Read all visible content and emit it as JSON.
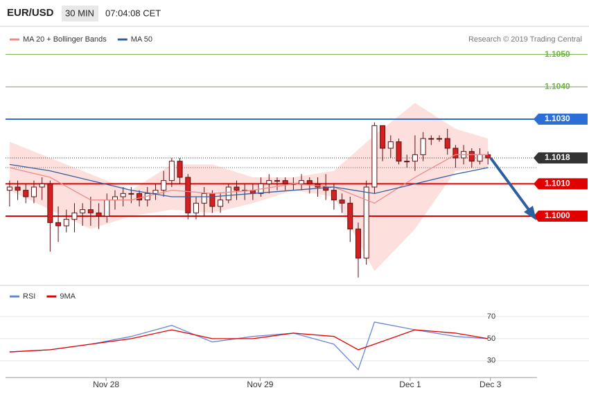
{
  "header": {
    "symbol": "EUR/USD",
    "timeframe": "30 MIN",
    "time": "07:04:08 CET",
    "copyright": "Research © 2019 Trading Central"
  },
  "chart_data": [
    {
      "type": "candlestick",
      "xlim": [
        -0.5,
        65.05
      ],
      "ylim": [
        1.0979,
        1.1054
      ],
      "up_color": "#ffffff",
      "down_color": "#d42020",
      "edge_color": "#5a1010",
      "open": [
        1.1008,
        1.1009,
        1.1008,
        1.1006,
        1.1009,
        1.101,
        1.0998,
        1.0997,
        1.0999,
        1.1001,
        1.1002,
        1.1001,
        1.1,
        1.1005,
        1.1006,
        1.1007,
        1.1007,
        1.1005,
        1.1007,
        1.1008,
        1.1011,
        1.1017,
        1.1012,
        1.1001,
        1.1004,
        1.1007,
        1.1003,
        1.1005,
        1.1009,
        1.1008,
        1.1008,
        1.1007,
        1.101,
        1.1011,
        1.1011,
        1.101,
        1.101,
        1.1011,
        1.101,
        1.1009,
        1.1008,
        1.1005,
        1.1004,
        1.0996,
        1.0987,
        1.1009,
        1.1028,
        1.1021,
        1.1023,
        1.1017,
        1.1017,
        1.1019,
        1.1024,
        1.1024,
        1.1024,
        1.1021,
        1.1018,
        1.102,
        1.1017,
        1.1019
      ],
      "high": [
        1.1011,
        1.1011,
        1.101,
        1.1011,
        1.1012,
        1.1011,
        1.1003,
        1.1002,
        1.1004,
        1.1004,
        1.1006,
        1.1004,
        1.1007,
        1.1008,
        1.1009,
        1.1009,
        1.1008,
        1.1009,
        1.101,
        1.1014,
        1.1018,
        1.1018,
        1.1013,
        1.1006,
        1.1009,
        1.1008,
        1.1007,
        1.101,
        1.1011,
        1.101,
        1.101,
        1.1012,
        1.1013,
        1.1012,
        1.1012,
        1.1012,
        1.1013,
        1.1012,
        1.1012,
        1.1013,
        1.101,
        1.1007,
        1.1006,
        1.0998,
        1.1011,
        1.1029,
        1.1028,
        1.1025,
        1.1024,
        1.1019,
        1.1025,
        1.1026,
        1.1025,
        1.1025,
        1.1027,
        1.1022,
        1.1022,
        1.1021,
        1.1021,
        1.102
      ],
      "low": [
        1.1003,
        1.1005,
        1.1004,
        1.1004,
        1.1005,
        1.0989,
        1.0992,
        1.0995,
        1.0995,
        1.0997,
        1.0997,
        1.0996,
        1.0998,
        1.1002,
        1.1003,
        1.1004,
        1.1003,
        1.1003,
        1.1005,
        1.1006,
        1.1009,
        1.101,
        1.0999,
        1.0999,
        1.1,
        1.1001,
        1.1001,
        1.1004,
        1.1005,
        1.1005,
        1.1005,
        1.1006,
        1.1007,
        1.1008,
        1.1008,
        1.1008,
        1.1008,
        1.1007,
        1.1006,
        1.1005,
        1.1002,
        1.1001,
        1.0992,
        1.0981,
        1.0985,
        1.1007,
        1.1017,
        1.1018,
        1.1016,
        1.1015,
        1.1014,
        1.1017,
        1.1022,
        1.1023,
        1.1019,
        1.1015,
        1.1016,
        1.1015,
        1.1016,
        1.1016
      ],
      "close": [
        1.1009,
        1.1008,
        1.1006,
        1.1009,
        1.101,
        1.0998,
        1.0997,
        1.0999,
        1.1001,
        1.1002,
        1.1001,
        1.1,
        1.1005,
        1.1006,
        1.1007,
        1.1007,
        1.1005,
        1.1007,
        1.1008,
        1.1011,
        1.1017,
        1.1012,
        1.1001,
        1.1004,
        1.1007,
        1.1003,
        1.1005,
        1.1009,
        1.1008,
        1.1008,
        1.1007,
        1.101,
        1.1011,
        1.1011,
        1.101,
        1.101,
        1.1011,
        1.101,
        1.1009,
        1.1008,
        1.1005,
        1.1004,
        1.0996,
        1.0987,
        1.1009,
        1.1028,
        1.1021,
        1.1023,
        1.1017,
        1.1017,
        1.1019,
        1.1024,
        1.1024,
        1.1024,
        1.1021,
        1.1018,
        1.102,
        1.1017,
        1.1019,
        1.1018
      ],
      "series": [
        {
          "name": "MA 20 + Bollinger Bands",
          "color": "#f08a8a",
          "band_color": "#fde0de",
          "x": [
            0,
            5,
            10,
            15,
            20,
            25,
            30,
            35,
            40,
            45,
            50,
            55,
            59
          ],
          "values": [
            1.1015,
            1.1012,
            1.1005,
            1.1005,
            1.1008,
            1.1007,
            1.1008,
            1.101,
            1.1009,
            1.1004,
            1.1012,
            1.1019,
            1.1019
          ],
          "upper": [
            1.1023,
            1.1018,
            1.1013,
            1.1008,
            1.1016,
            1.1016,
            1.1012,
            1.1012,
            1.1014,
            1.1025,
            1.1035,
            1.1027,
            1.1024
          ],
          "lower": [
            1.1008,
            1.1002,
            1.0996,
            1.1,
            1.1002,
            1.1001,
            1.1004,
            1.1008,
            1.1006,
            1.0983,
            1.0996,
            1.1014,
            1.1015
          ]
        },
        {
          "name": "MA 50",
          "color": "#2f5f9f",
          "x": [
            0,
            5,
            10,
            15,
            20,
            25,
            30,
            35,
            40,
            45,
            50,
            55,
            59
          ],
          "values": [
            1.1016,
            1.1014,
            1.1011,
            1.1008,
            1.1006,
            1.1006,
            1.1007,
            1.1008,
            1.1009,
            1.1007,
            1.101,
            1.1013,
            1.1015
          ]
        }
      ],
      "levels": [
        {
          "value": 1.105,
          "label": "1.1050",
          "color": "#6db33f",
          "style": "text"
        },
        {
          "value": 1.104,
          "label": "1.1040",
          "color": "#6db33f",
          "style": "text"
        },
        {
          "value": 1.103,
          "label": "1.1030",
          "color": "#2b6fd6",
          "style": "box"
        },
        {
          "value": 1.1018,
          "label": "1.1018",
          "color": "#333333",
          "style": "dotted-box"
        },
        {
          "value": 1.101,
          "label": "1.1010",
          "color": "#e00000",
          "style": "box"
        },
        {
          "value": 1.1,
          "label": "1.1000",
          "color": "#e00000",
          "style": "box"
        }
      ],
      "reference_line": 1.1015
    },
    {
      "type": "line",
      "xlim": [
        -0.5,
        65.05
      ],
      "ylim": [
        18,
        90
      ],
      "yticks": [
        30,
        50,
        70
      ],
      "grid": true,
      "xticks": [
        {
          "value": 11.9,
          "label": "Nov 28"
        },
        {
          "value": 30.9,
          "label": "Nov 29"
        },
        {
          "value": 49.4,
          "label": "Dec 1"
        },
        {
          "value": 59.3,
          "label": "Dec 3"
        }
      ],
      "series": [
        {
          "name": "RSI",
          "color": "#6a86d8",
          "x": [
            0,
            5,
            10,
            15,
            20,
            25,
            30,
            35,
            40,
            43,
            45,
            50,
            55,
            59
          ],
          "values": [
            38,
            40,
            45,
            52,
            62,
            47,
            52,
            55,
            45,
            22,
            65,
            58,
            52,
            50
          ]
        },
        {
          "name": "9MA",
          "color": "#e00000",
          "x": [
            0,
            5,
            10,
            15,
            20,
            25,
            30,
            35,
            40,
            43,
            45,
            50,
            55,
            59
          ],
          "values": [
            38,
            40,
            45,
            50,
            58,
            50,
            50,
            55,
            52,
            40,
            45,
            58,
            55,
            50
          ]
        }
      ]
    }
  ]
}
